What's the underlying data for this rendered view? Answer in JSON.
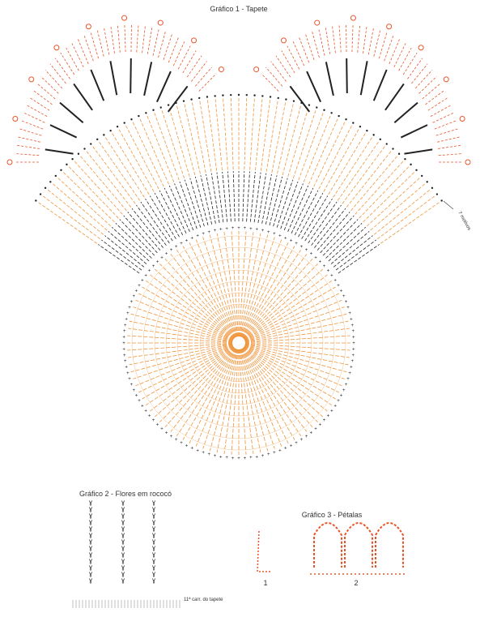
{
  "grafico1": {
    "title": "Gráfico 1 - Tapete",
    "note": "7 motivos"
  },
  "grafico2": {
    "title": "Gráfico 2 - Flores em rococó",
    "note": "11ª carr. do tapete"
  },
  "grafico3": {
    "title": "Gráfico 3 - Pétalas",
    "labels": [
      "1",
      "2"
    ]
  }
}
